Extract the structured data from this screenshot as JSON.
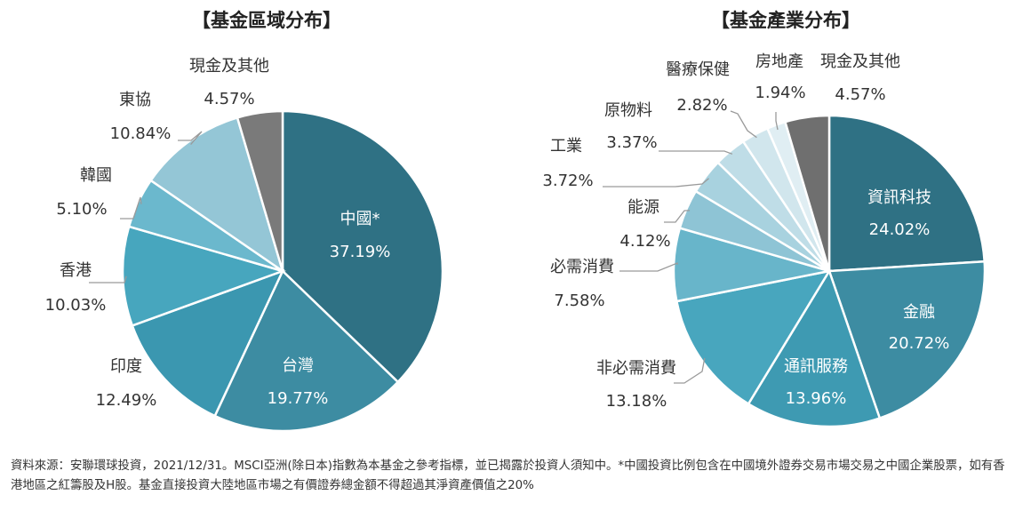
{
  "chart_data": [
    {
      "type": "pie",
      "title": "【基金區域分布】",
      "slices": [
        {
          "name": "中國*",
          "label": "37.19%",
          "value": 37.19,
          "color": "#2f7184"
        },
        {
          "name": "台灣",
          "label": "19.77%",
          "value": 19.77,
          "color": "#3d8ca2"
        },
        {
          "name": "印度",
          "label": "12.49%",
          "value": 12.49,
          "color": "#3b97b0"
        },
        {
          "name": "香港",
          "label": "10.03%",
          "value": 10.03,
          "color": "#47a6be"
        },
        {
          "name": "韓國",
          "label": "5.10%",
          "value": 5.1,
          "color": "#6bb8cd"
        },
        {
          "name": "東協",
          "label": "10.84%",
          "value": 10.84,
          "color": "#94c6d6"
        },
        {
          "name": "現金及其他",
          "label": "4.57%",
          "value": 4.57,
          "color": "#7a7a7a"
        }
      ]
    },
    {
      "type": "pie",
      "title": "【基金產業分布】",
      "slices": [
        {
          "name": "資訊科技",
          "label": "24.02%",
          "value": 24.02,
          "color": "#2f7184"
        },
        {
          "name": "金融",
          "label": "20.72%",
          "value": 20.72,
          "color": "#3d8ca2"
        },
        {
          "name": "通訊服務",
          "label": "13.96%",
          "value": 13.96,
          "color": "#3e9ab2"
        },
        {
          "name": "非必需消費",
          "label": "13.18%",
          "value": 13.18,
          "color": "#48a6be"
        },
        {
          "name": "必需消費",
          "label": "7.58%",
          "value": 7.58,
          "color": "#68b5ca"
        },
        {
          "name": "能源",
          "label": "4.12%",
          "value": 4.12,
          "color": "#8ec4d5"
        },
        {
          "name": "工業",
          "label": "3.72%",
          "value": 3.72,
          "color": "#a8d2df"
        },
        {
          "name": "原物料",
          "label": "3.37%",
          "value": 3.37,
          "color": "#bfdde7"
        },
        {
          "name": "醫療保健",
          "label": "2.82%",
          "value": 2.82,
          "color": "#d1e6ed"
        },
        {
          "name": "房地產",
          "label": "1.94%",
          "value": 1.94,
          "color": "#e0eef3"
        },
        {
          "name": "現金及其他",
          "label": "4.57%",
          "value": 4.57,
          "color": "#6f6f6f"
        }
      ]
    }
  ],
  "footnote": "資料來源：安聯環球投資，2021/12/31。MSCI亞洲(除日本)指數為本基金之參考指標，並已揭露於投資人須知中。*中國投資比例包含在中國境外證券交易市場交易之中國企業股票，如有香港地區之紅籌股及H股。基金直接投資大陸地區市場之有價證券總金額不得超過其淨資產價值之20%"
}
